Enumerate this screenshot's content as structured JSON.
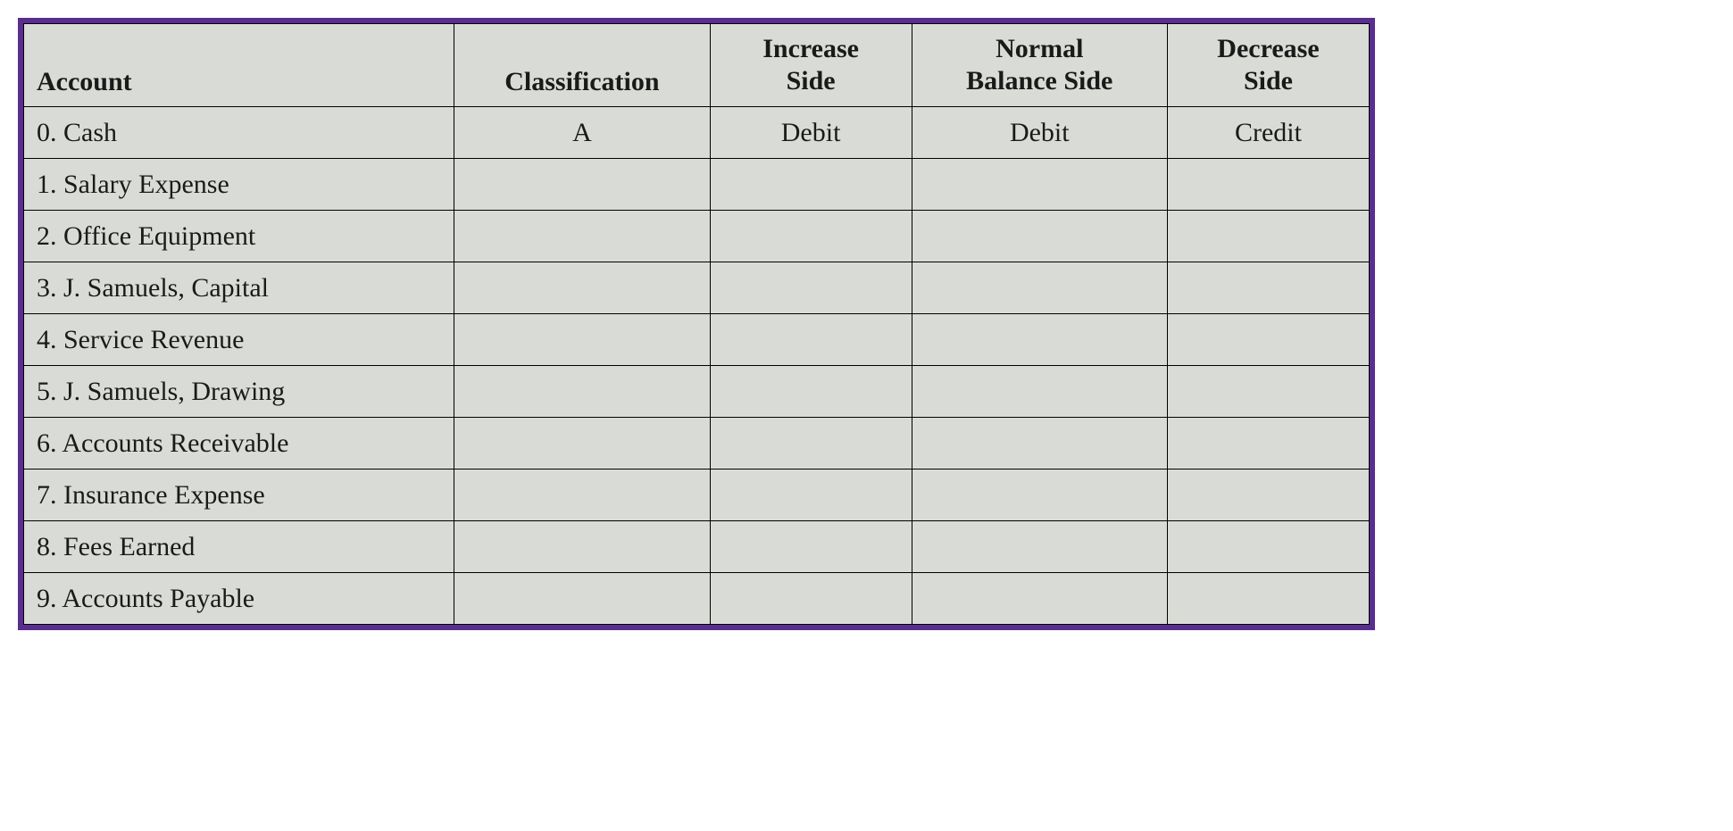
{
  "table": {
    "type": "table",
    "border_color": "#5a2d91",
    "border_width": 6,
    "background_color": "#d9dcd6",
    "cell_border_color": "#000000",
    "text_color": "#1a1a1a",
    "font_family": "Georgia, serif",
    "header_fontsize": 30,
    "cell_fontsize": 30,
    "columns": [
      {
        "key": "account",
        "label": "Account",
        "align": "left",
        "width_pct": 32
      },
      {
        "key": "classification",
        "label": "Classification",
        "align": "center",
        "width_pct": 19
      },
      {
        "key": "increase",
        "label_line1": "Increase",
        "label_line2": "Side",
        "align": "center",
        "width_pct": 15
      },
      {
        "key": "balance",
        "label_line1": "Normal",
        "label_line2": "Balance Side",
        "align": "center",
        "width_pct": 19
      },
      {
        "key": "decrease",
        "label_line1": "Decrease",
        "label_line2": "Side",
        "align": "center",
        "width_pct": 15
      }
    ],
    "rows": [
      {
        "account": "0. Cash",
        "classification": "A",
        "increase": "Debit",
        "balance": "Debit",
        "decrease": "Credit"
      },
      {
        "account": "1. Salary Expense",
        "classification": "",
        "increase": "",
        "balance": "",
        "decrease": ""
      },
      {
        "account": "2. Office Equipment",
        "classification": "",
        "increase": "",
        "balance": "",
        "decrease": ""
      },
      {
        "account": "3. J. Samuels, Capital",
        "classification": "",
        "increase": "",
        "balance": "",
        "decrease": ""
      },
      {
        "account": "4. Service Revenue",
        "classification": "",
        "increase": "",
        "balance": "",
        "decrease": ""
      },
      {
        "account": "5. J. Samuels, Drawing",
        "classification": "",
        "increase": "",
        "balance": "",
        "decrease": ""
      },
      {
        "account": "6. Accounts Receivable",
        "classification": "",
        "increase": "",
        "balance": "",
        "decrease": ""
      },
      {
        "account": "7. Insurance Expense",
        "classification": "",
        "increase": "",
        "balance": "",
        "decrease": ""
      },
      {
        "account": "8. Fees Earned",
        "classification": "",
        "increase": "",
        "balance": "",
        "decrease": ""
      },
      {
        "account": "9. Accounts Payable",
        "classification": "",
        "increase": "",
        "balance": "",
        "decrease": ""
      }
    ]
  }
}
